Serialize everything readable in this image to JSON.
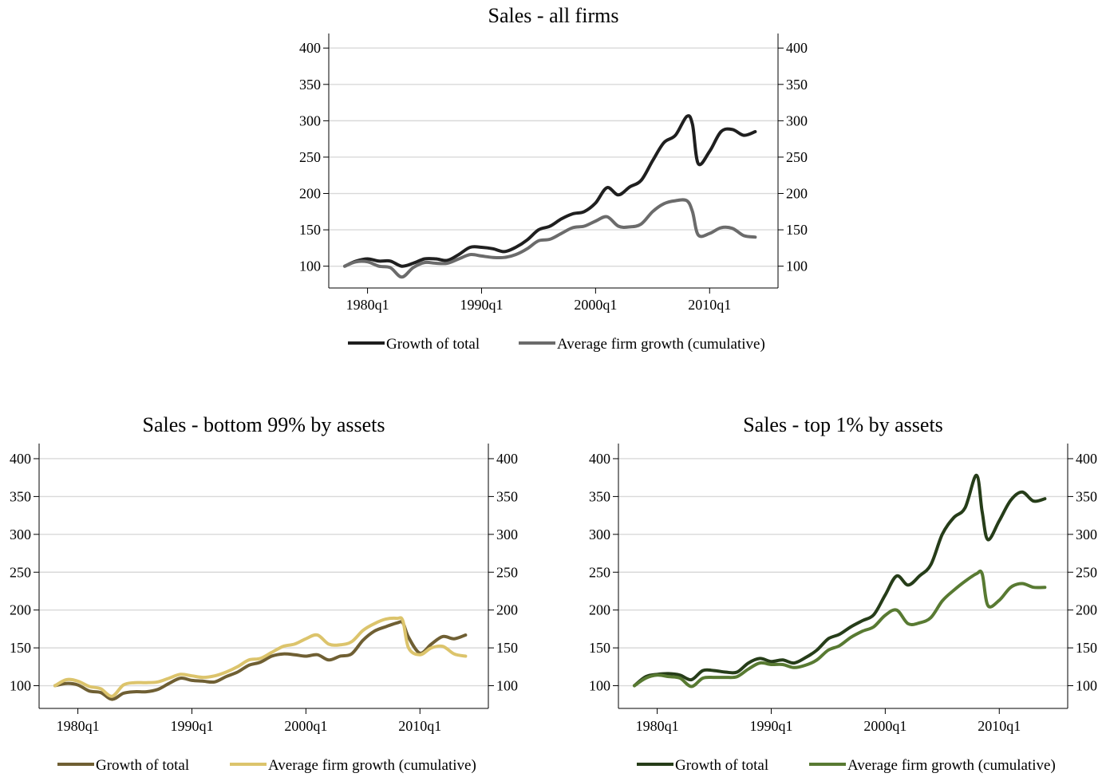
{
  "figure": {
    "legend_labels": [
      "Growth of total",
      "Average firm growth (cumulative)"
    ]
  },
  "chart_data": [
    {
      "type": "line",
      "title": "Sales - all firms",
      "xlabel": "",
      "ylabel": "",
      "x_ticks": [
        "1980q1",
        "1990q1",
        "2000q1",
        "2010q1"
      ],
      "y_ticks": [
        100,
        150,
        200,
        250,
        300,
        350,
        400
      ],
      "ylim": [
        70,
        420
      ],
      "grid": true,
      "legend_position": "bottom",
      "x_years": [
        1978,
        1979,
        1980,
        1981,
        1982,
        1983,
        1984,
        1985,
        1986,
        1987,
        1988,
        1989,
        1990,
        1991,
        1992,
        1993,
        1994,
        1995,
        1996,
        1997,
        1998,
        1999,
        2000,
        2001,
        2002,
        2003,
        2004,
        2005,
        2006,
        2007,
        2008,
        2008.5,
        2009,
        2010,
        2011,
        2012,
        2013,
        2014
      ],
      "series": [
        {
          "name": "Growth of total",
          "color": "#1f1f1f",
          "values": [
            100,
            107,
            110,
            107,
            107,
            100,
            104,
            110,
            110,
            108,
            116,
            126,
            126,
            124,
            120,
            126,
            136,
            150,
            155,
            165,
            172,
            175,
            187,
            208,
            198,
            209,
            218,
            245,
            270,
            280,
            306,
            295,
            241,
            258,
            285,
            288,
            280,
            285
          ]
        },
        {
          "name": "Average firm growth (cumulative)",
          "color": "#6b6b6b",
          "values": [
            100,
            106,
            106,
            100,
            98,
            85,
            98,
            105,
            104,
            104,
            110,
            116,
            114,
            112,
            112,
            116,
            124,
            135,
            137,
            145,
            153,
            155,
            162,
            168,
            155,
            154,
            158,
            175,
            186,
            190,
            190,
            175,
            143,
            145,
            153,
            152,
            142,
            140
          ]
        }
      ]
    },
    {
      "type": "line",
      "title": "Sales - bottom 99% by assets",
      "xlabel": "",
      "ylabel": "",
      "x_ticks": [
        "1980q1",
        "1990q1",
        "2000q1",
        "2010q1"
      ],
      "y_ticks": [
        100,
        150,
        200,
        250,
        300,
        350,
        400
      ],
      "ylim": [
        70,
        420
      ],
      "grid": true,
      "legend_position": "bottom",
      "x_years": [
        1978,
        1979,
        1980,
        1981,
        1982,
        1983,
        1984,
        1985,
        1986,
        1987,
        1988,
        1989,
        1990,
        1991,
        1992,
        1993,
        1994,
        1995,
        1996,
        1997,
        1998,
        1999,
        2000,
        2001,
        2002,
        2003,
        2004,
        2005,
        2006,
        2007,
        2008,
        2008.5,
        2009,
        2010,
        2011,
        2012,
        2013,
        2014
      ],
      "series": [
        {
          "name": "Growth of total",
          "color": "#6f5f33",
          "values": [
            100,
            103,
            101,
            93,
            91,
            82,
            90,
            92,
            92,
            95,
            103,
            110,
            107,
            106,
            105,
            112,
            118,
            127,
            131,
            139,
            142,
            141,
            139,
            141,
            134,
            139,
            142,
            160,
            172,
            178,
            183,
            183,
            164,
            143,
            155,
            165,
            162,
            167
          ]
        },
        {
          "name": "Average firm growth (cumulative)",
          "color": "#dcc46c",
          "values": [
            100,
            108,
            106,
            99,
            96,
            86,
            101,
            104,
            104,
            105,
            110,
            115,
            113,
            111,
            113,
            118,
            125,
            134,
            136,
            144,
            152,
            155,
            162,
            167,
            155,
            154,
            158,
            173,
            182,
            188,
            189,
            186,
            150,
            141,
            150,
            152,
            142,
            139
          ]
        }
      ]
    },
    {
      "type": "line",
      "title": "Sales - top 1% by assets",
      "xlabel": "",
      "ylabel": "",
      "x_ticks": [
        "1980q1",
        "1990q1",
        "2000q1",
        "2010q1"
      ],
      "y_ticks": [
        100,
        150,
        200,
        250,
        300,
        350,
        400
      ],
      "ylim": [
        70,
        420
      ],
      "grid": true,
      "legend_position": "bottom",
      "x_years": [
        1978,
        1979,
        1980,
        1981,
        1982,
        1983,
        1984,
        1985,
        1986,
        1987,
        1988,
        1989,
        1990,
        1991,
        1992,
        1993,
        1994,
        1995,
        1996,
        1997,
        1998,
        1999,
        2000,
        2001,
        2002,
        2003,
        2004,
        2005,
        2006,
        2007,
        2008,
        2008.5,
        2009,
        2010,
        2011,
        2012,
        2013,
        2014
      ],
      "series": [
        {
          "name": "Growth of total",
          "color": "#263d19",
          "values": [
            100,
            112,
            115,
            116,
            114,
            108,
            120,
            120,
            118,
            118,
            130,
            136,
            132,
            134,
            130,
            137,
            147,
            162,
            168,
            178,
            186,
            194,
            220,
            245,
            233,
            245,
            260,
            300,
            322,
            335,
            378,
            330,
            293,
            318,
            345,
            356,
            344,
            347
          ]
        },
        {
          "name": "Average firm growth (cumulative)",
          "color": "#587a32",
          "values": [
            100,
            110,
            114,
            112,
            110,
            99,
            110,
            111,
            111,
            112,
            122,
            130,
            128,
            128,
            124,
            127,
            134,
            147,
            153,
            164,
            172,
            178,
            193,
            200,
            182,
            183,
            190,
            212,
            226,
            238,
            248,
            248,
            206,
            213,
            230,
            235,
            230,
            230
          ]
        }
      ]
    }
  ]
}
